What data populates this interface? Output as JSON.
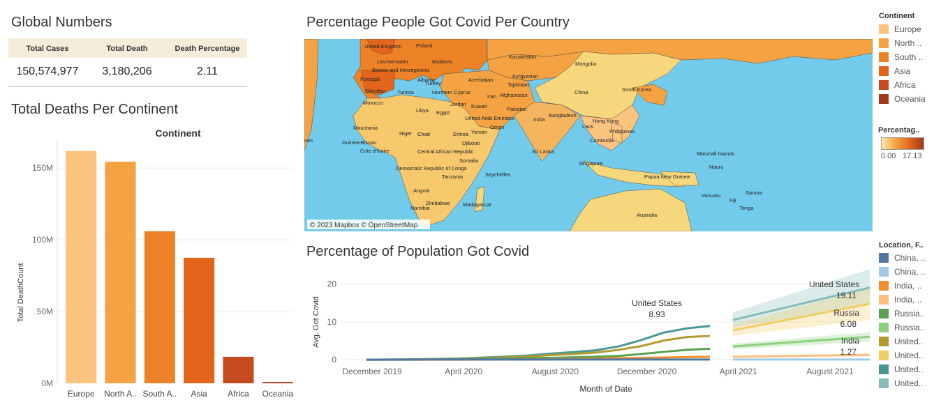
{
  "global": {
    "title": "Global Numbers",
    "headers": [
      "Total Cases",
      "Total Death",
      "Death Percentage"
    ],
    "values": [
      "150,574,977",
      "3,180,206",
      "2.11"
    ]
  },
  "deaths_panel": {
    "title": "Total Deaths Per Continent"
  },
  "map_panel": {
    "title": "Percentage People Got Covid Per Country",
    "attribution": "© 2023 Mapbox © OpenStreetMap",
    "country_labels": [
      "United Kingdom",
      "Poland",
      "Kazakhstan",
      "Liechtenstein",
      "Moldova",
      "Mongolia",
      "Bosnia and Herzegovina",
      "Kyrgyzstan",
      "Portugal",
      "Albania",
      "Azerbaijan",
      "Tajikistan",
      "Turkey",
      "Gibraltar",
      "Tunisia",
      "Northern Cyprus",
      "Iran",
      "Afghanistan",
      "China",
      "South Korea",
      "Morocco",
      "Jordan",
      "Kuwait",
      "Pakistan",
      "Libya",
      "Egypt",
      "Hong Kong",
      "United Arab Emirates",
      "India",
      "Bangladesh",
      "Oman",
      "Laos",
      "Mauritania",
      "Niger",
      "Chad",
      "Eritrea",
      "Yemen",
      "Philippines",
      "Guinea-Bissau",
      "Djibouti",
      "Cambodia",
      "Cote d'Ivoire",
      "Central African Republic",
      "Sri Lanka",
      "Marshall Islands",
      "Somalia",
      "Singapore",
      "Nauru",
      "Democratic Republic of Congo",
      "Seychelles",
      "Tanzania",
      "Papua New Guinea",
      "Angola",
      "Samoa",
      "Vanuatu",
      "Fiji",
      "Zimbabwe",
      "Madagascar",
      "Tonga",
      "Namibia",
      "Australia",
      "nes"
    ]
  },
  "map_legend": {
    "title": "Continent",
    "items": [
      {
        "label": "Europe",
        "color": "#fbc47f"
      },
      {
        "label": "North ..",
        "color": "#f5a342"
      },
      {
        "label": "South ..",
        "color": "#ee8227"
      },
      {
        "label": "Asia",
        "color": "#e3651c"
      },
      {
        "label": "Africa",
        "color": "#c54b1f"
      },
      {
        "label": "Oceania",
        "color": "#a23a1e"
      }
    ],
    "gradient_title": "Percentag..",
    "gradient_min": "0.00",
    "gradient_max": "17.13"
  },
  "line_panel": {
    "title": "Percentage of Population Got Covid"
  },
  "line_legend": {
    "title": "Location, F..",
    "items": [
      {
        "label": "China, ..",
        "color": "#4e79a7"
      },
      {
        "label": "China, ..",
        "color": "#a0cbe8"
      },
      {
        "label": "India, ..",
        "color": "#f28e2b"
      },
      {
        "label": "India, ..",
        "color": "#ffbe7d"
      },
      {
        "label": "Russia..",
        "color": "#59a14f"
      },
      {
        "label": "Russia..",
        "color": "#8cd17d"
      },
      {
        "label": "United..",
        "color": "#b6992d"
      },
      {
        "label": "United..",
        "color": "#f1ce63"
      },
      {
        "label": "United..",
        "color": "#499894"
      },
      {
        "label": "United..",
        "color": "#86bcb6"
      }
    ]
  },
  "chart_data": [
    {
      "type": "bar",
      "header": "Continent",
      "ylabel": "Total DeathCount",
      "categories": [
        "Europe",
        "North A..",
        "South A..",
        "Asia",
        "Africa",
        "Oceania"
      ],
      "values": [
        162000000,
        154500000,
        106000000,
        87500000,
        18500000,
        900000
      ],
      "colors": [
        "#fbc47f",
        "#f5a342",
        "#ee8227",
        "#e3651c",
        "#c54b1f",
        "#a23a1e"
      ],
      "ylim": [
        0,
        170000000
      ],
      "yticks": [
        0,
        50000000,
        100000000,
        150000000
      ],
      "ytick_labels": [
        "0M",
        "50M",
        "100M",
        "150M"
      ],
      "grid": true
    },
    {
      "type": "line",
      "xlabel": "Month of Date",
      "ylabel": "Avg. Got Covid",
      "ylim": [
        -2,
        24
      ],
      "yticks": [
        0,
        10,
        20
      ],
      "xticks": [
        "December 2019",
        "April 2020",
        "August 2020",
        "December 2020",
        "April 2021",
        "August 2021"
      ],
      "xtick_months": [
        0,
        4,
        8,
        12,
        16,
        20
      ],
      "x_start": "December 2019",
      "series": [
        {
          "name": "United States",
          "color": "#499894",
          "months": [
            0,
            2,
            4,
            6,
            7,
            8,
            9,
            10,
            11,
            12,
            13,
            14,
            15
          ],
          "values": [
            0,
            0.1,
            0.3,
            0.8,
            1.1,
            1.6,
            2.0,
            2.5,
            3.5,
            5.2,
            7.2,
            8.3,
            8.93
          ]
        },
        {
          "name": "",
          "color": "#b6992d",
          "months": [
            0,
            2,
            4,
            6,
            7,
            8,
            9,
            10,
            11,
            12,
            13,
            14,
            15
          ],
          "values": [
            0,
            0.1,
            0.2,
            0.6,
            0.8,
            1.2,
            1.5,
            1.9,
            2.6,
            3.6,
            5.1,
            6.0,
            6.3
          ]
        },
        {
          "name": "",
          "color": "#59a14f",
          "months": [
            0,
            2,
            4,
            6,
            8,
            10,
            11,
            12,
            13,
            14,
            15
          ],
          "values": [
            0,
            0,
            0.1,
            0.3,
            0.5,
            0.8,
            1.0,
            1.5,
            2.1,
            2.6,
            2.9
          ]
        },
        {
          "name": "",
          "color": "#f28e2b",
          "months": [
            0,
            4,
            8,
            10,
            12,
            14,
            15
          ],
          "values": [
            0,
            0,
            0.1,
            0.3,
            0.5,
            0.7,
            0.8
          ]
        },
        {
          "name": "",
          "color": "#4e79a7",
          "months": [
            0,
            4,
            8,
            12,
            15
          ],
          "values": [
            0,
            0.05,
            0.05,
            0.05,
            0.05
          ]
        },
        {
          "name": "United States",
          "color": "#86bcb6",
          "months": [
            16,
            22
          ],
          "values": [
            10.5,
            19.11
          ],
          "band": [
            [
              8.5,
              12.5
            ],
            [
              14.5,
              24.0
            ]
          ]
        },
        {
          "name": "",
          "color": "#f1ce63",
          "months": [
            16,
            22
          ],
          "values": [
            7.8,
            14.8
          ],
          "band": [
            [
              6.3,
              9.3
            ],
            [
              10.5,
              19.0
            ]
          ]
        },
        {
          "name": "Russia",
          "color": "#8cd17d",
          "months": [
            16,
            22
          ],
          "values": [
            3.5,
            6.08
          ],
          "band": [
            [
              2.8,
              4.2
            ],
            [
              4.8,
              7.3
            ]
          ]
        },
        {
          "name": "India",
          "color": "#ffbe7d",
          "months": [
            16,
            22
          ],
          "values": [
            0.8,
            1.27
          ],
          "band": [
            [
              0.6,
              1.0
            ],
            [
              0.9,
              1.6
            ]
          ]
        },
        {
          "name": "",
          "color": "#a0cbe8",
          "months": [
            16,
            22
          ],
          "values": [
            0.05,
            0.06
          ],
          "band": [
            [
              0,
              0.1
            ],
            [
              0,
              0.12
            ]
          ]
        }
      ],
      "annotations": [
        {
          "series": "United States",
          "label": "United States",
          "value": "8.93"
        },
        {
          "series": "United States",
          "label": "United States",
          "value": "19.11"
        },
        {
          "series": "Russia",
          "label": "Russia",
          "value": "6.08"
        },
        {
          "series": "India",
          "label": "India",
          "value": "1.27"
        }
      ]
    }
  ]
}
